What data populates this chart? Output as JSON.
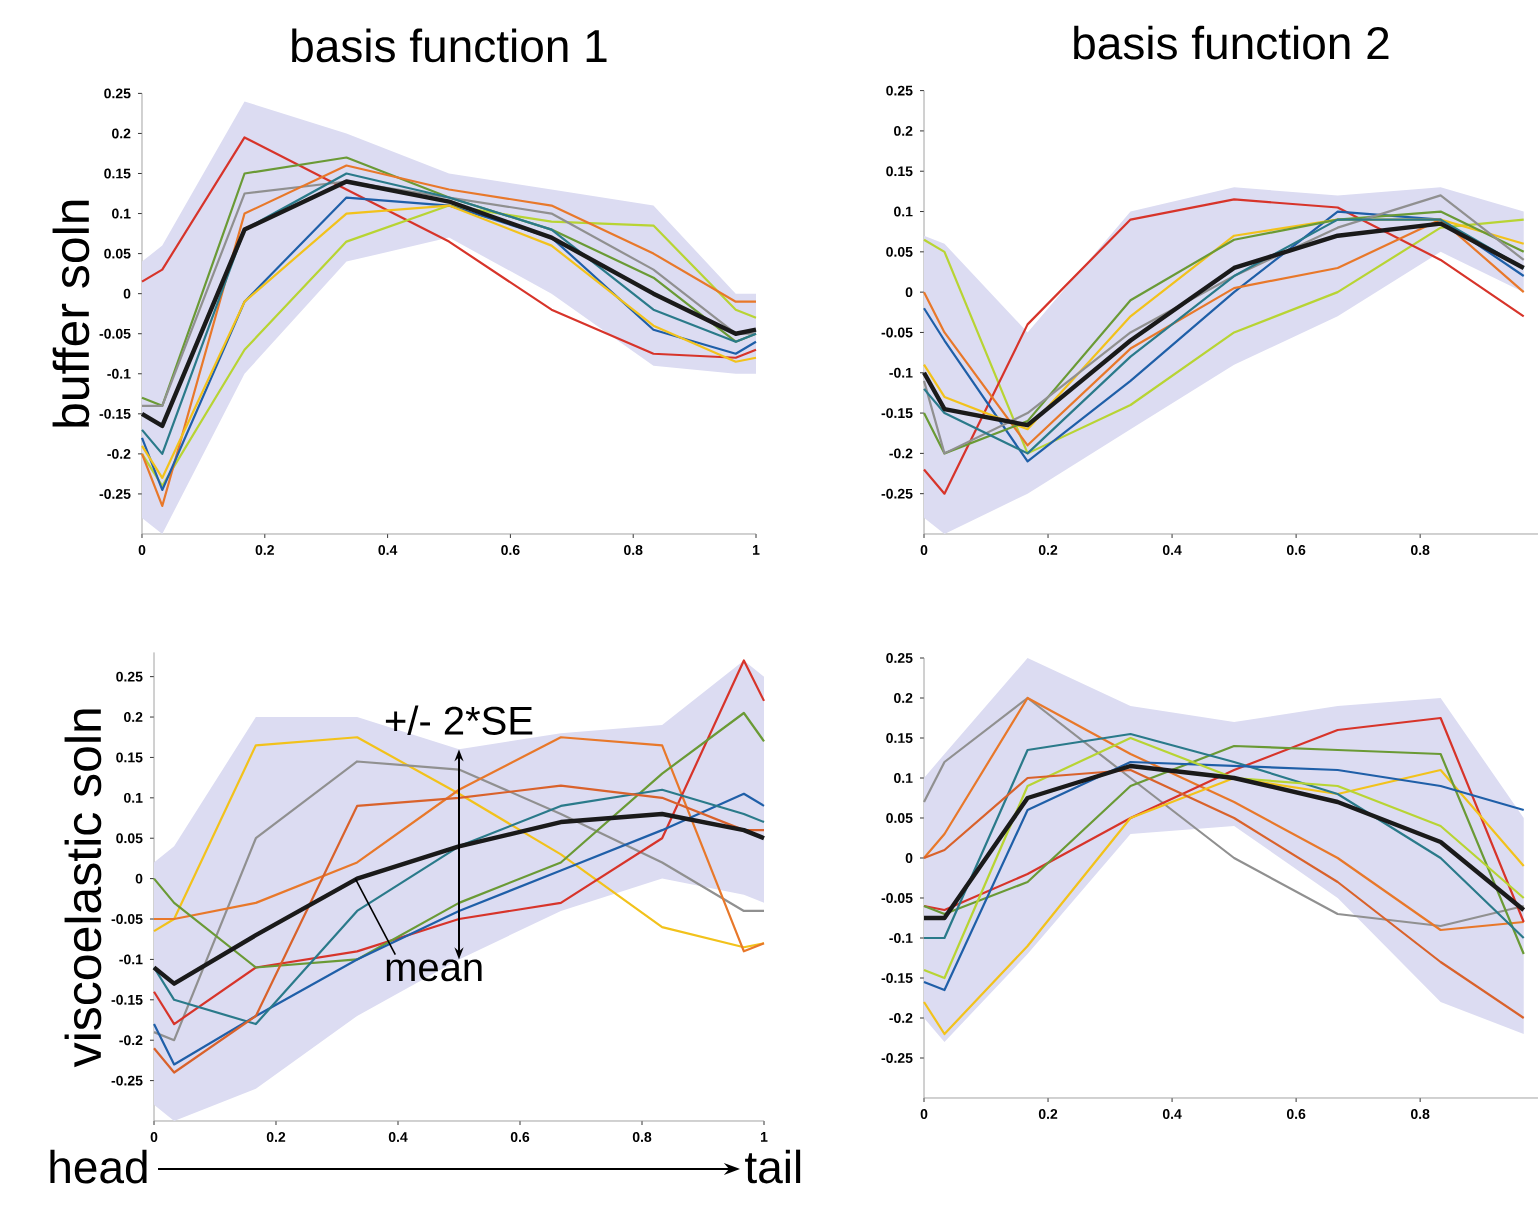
{
  "chart_data": [
    {
      "type": "line",
      "title": "basis function 1",
      "ylabel": "buffer soln",
      "x": [
        0,
        0.033,
        0.167,
        0.333,
        0.5,
        0.667,
        0.833,
        0.967,
        1
      ],
      "xlim": [
        0,
        1
      ],
      "ylim": [
        -0.3,
        0.25
      ],
      "xticks": [
        0,
        0.2,
        0.4,
        0.6,
        0.8,
        1
      ],
      "yticks": [
        -0.25,
        -0.2,
        -0.15,
        -0.1,
        -0.05,
        0,
        0.05,
        0.1,
        0.15,
        0.2,
        0.25
      ],
      "series": [
        {
          "color": "#d7342a",
          "values": [
            0.015,
            0.03,
            0.195,
            0.13,
            0.065,
            -0.02,
            -0.075,
            -0.08,
            -0.07
          ]
        },
        {
          "color": "#b8d433",
          "values": [
            -0.2,
            -0.24,
            -0.07,
            0.065,
            0.11,
            0.09,
            0.085,
            -0.02,
            -0.03
          ]
        },
        {
          "color": "#6a9a35",
          "values": [
            -0.13,
            -0.14,
            0.15,
            0.17,
            0.12,
            0.08,
            0.02,
            -0.06,
            -0.05
          ]
        },
        {
          "color": "#909090",
          "values": [
            -0.14,
            -0.14,
            0.125,
            0.14,
            0.12,
            0.1,
            0.03,
            -0.05,
            -0.05
          ]
        },
        {
          "color": "#e8782a",
          "values": [
            -0.2,
            -0.265,
            0.1,
            0.16,
            0.13,
            0.11,
            0.05,
            -0.01,
            -0.01
          ]
        },
        {
          "color": "#1f5fa8",
          "values": [
            -0.18,
            -0.245,
            -0.01,
            0.12,
            0.11,
            0.07,
            -0.045,
            -0.075,
            -0.06
          ]
        },
        {
          "color": "#2a7a8a",
          "values": [
            -0.17,
            -0.2,
            0.08,
            0.15,
            0.12,
            0.08,
            -0.02,
            -0.06,
            -0.05
          ]
        },
        {
          "color": "#f2c21b",
          "values": [
            -0.19,
            -0.23,
            -0.01,
            0.1,
            0.11,
            0.06,
            -0.04,
            -0.085,
            -0.08
          ]
        },
        {
          "color": "#1a1a1a",
          "values": [
            -0.15,
            -0.165,
            0.08,
            0.14,
            0.115,
            0.07,
            0.0,
            -0.05,
            -0.045
          ],
          "lower": [
            -0.28,
            -0.3,
            -0.1,
            0.04,
            0.07,
            0.0,
            -0.09,
            -0.1,
            -0.1
          ],
          "upper": [
            0.04,
            0.06,
            0.24,
            0.2,
            0.15,
            0.13,
            0.11,
            0.0,
            0.0
          ]
        }
      ]
    },
    {
      "type": "line",
      "title": "basis function 2",
      "x": [
        0,
        0.033,
        0.167,
        0.333,
        0.5,
        0.667,
        0.833,
        0.967
      ],
      "xlim": [
        0,
        0.99
      ],
      "ylim": [
        -0.3,
        0.25
      ],
      "xticks": [
        0,
        0.2,
        0.4,
        0.6,
        0.8
      ],
      "yticks": [
        -0.25,
        -0.2,
        -0.15,
        -0.1,
        -0.05,
        0,
        0.05,
        0.1,
        0.15,
        0.2,
        0.25
      ],
      "series": [
        {
          "color": "#b8d433",
          "values": [
            0.065,
            0.05,
            -0.2,
            -0.14,
            -0.05,
            0.0,
            0.08,
            0.09
          ]
        },
        {
          "color": "#d7342a",
          "values": [
            -0.22,
            -0.25,
            -0.04,
            0.09,
            0.115,
            0.105,
            0.04,
            -0.03
          ]
        },
        {
          "color": "#1f5fa8",
          "values": [
            -0.02,
            -0.06,
            -0.21,
            -0.11,
            0.0,
            0.1,
            0.09,
            0.02
          ]
        },
        {
          "color": "#e8782a",
          "values": [
            0.0,
            -0.05,
            -0.19,
            -0.07,
            0.005,
            0.03,
            0.09,
            0.0
          ]
        },
        {
          "color": "#f2c21b",
          "values": [
            -0.09,
            -0.13,
            -0.17,
            -0.03,
            0.07,
            0.09,
            0.09,
            0.06
          ]
        },
        {
          "color": "#6a9a35",
          "values": [
            -0.15,
            -0.2,
            -0.16,
            -0.01,
            0.065,
            0.09,
            0.1,
            0.05
          ]
        },
        {
          "color": "#909090",
          "values": [
            -0.11,
            -0.2,
            -0.15,
            -0.05,
            0.02,
            0.08,
            0.12,
            0.04
          ]
        },
        {
          "color": "#2a7a8a",
          "values": [
            -0.12,
            -0.15,
            -0.2,
            -0.08,
            0.02,
            0.09,
            0.09,
            0.03
          ]
        },
        {
          "color": "#1a1a1a",
          "values": [
            -0.1,
            -0.145,
            -0.165,
            -0.06,
            0.03,
            0.07,
            0.085,
            0.03
          ],
          "lower": [
            -0.28,
            -0.3,
            -0.25,
            -0.17,
            -0.09,
            -0.03,
            0.05,
            0.0
          ],
          "upper": [
            0.07,
            0.06,
            -0.05,
            0.1,
            0.13,
            0.12,
            0.13,
            0.1
          ]
        }
      ]
    },
    {
      "type": "line",
      "ylabel": "viscoelastic soln",
      "x": [
        0,
        0.033,
        0.167,
        0.333,
        0.5,
        0.667,
        0.833,
        0.967,
        1
      ],
      "xlim": [
        0,
        1
      ],
      "ylim": [
        -0.3,
        0.28
      ],
      "xticks": [
        0,
        0.2,
        0.4,
        0.6,
        0.8,
        1
      ],
      "yticks": [
        -0.25,
        -0.2,
        -0.15,
        -0.1,
        -0.05,
        0,
        0.05,
        0.1,
        0.15,
        0.2,
        0.25
      ],
      "annotations": [
        {
          "text": "+/- 2*SE",
          "x": 0.5,
          "y": 0.16
        },
        {
          "text": "mean",
          "x": 0.33,
          "y": 0.0
        },
        "head",
        "tail"
      ],
      "series": [
        {
          "color": "#f2c21b",
          "values": [
            -0.065,
            -0.05,
            0.165,
            0.175,
            0.105,
            0.03,
            -0.06,
            -0.085,
            -0.08
          ]
        },
        {
          "color": "#909090",
          "values": [
            -0.19,
            -0.2,
            0.05,
            0.145,
            0.135,
            0.08,
            0.02,
            -0.04,
            -0.04
          ]
        },
        {
          "color": "#e8782a",
          "values": [
            -0.05,
            -0.05,
            -0.03,
            0.02,
            0.11,
            0.175,
            0.165,
            -0.09,
            -0.08
          ]
        },
        {
          "color": "#d7342a",
          "values": [
            -0.14,
            -0.18,
            -0.11,
            -0.09,
            -0.05,
            -0.03,
            0.05,
            0.27,
            0.22
          ]
        },
        {
          "color": "#6a9a35",
          "values": [
            0.0,
            -0.03,
            -0.11,
            -0.1,
            -0.03,
            0.02,
            0.13,
            0.205,
            0.17
          ]
        },
        {
          "color": "#1f5fa8",
          "values": [
            -0.18,
            -0.23,
            -0.17,
            -0.1,
            -0.04,
            0.01,
            0.06,
            0.105,
            0.09
          ]
        },
        {
          "color": "#2a7a8a",
          "values": [
            -0.11,
            -0.15,
            -0.18,
            -0.04,
            0.04,
            0.09,
            0.11,
            0.08,
            0.07
          ]
        },
        {
          "color": "#d9622b",
          "values": [
            -0.21,
            -0.24,
            -0.17,
            0.09,
            0.1,
            0.115,
            0.1,
            0.06,
            0.06
          ]
        },
        {
          "color": "#1a1a1a",
          "values": [
            -0.11,
            -0.13,
            -0.07,
            0.0,
            0.04,
            0.07,
            0.08,
            0.06,
            0.05
          ],
          "lower": [
            -0.28,
            -0.3,
            -0.26,
            -0.17,
            -0.1,
            -0.04,
            0.0,
            -0.02,
            -0.03
          ],
          "upper": [
            0.02,
            0.04,
            0.2,
            0.2,
            0.16,
            0.18,
            0.19,
            0.27,
            0.25
          ]
        }
      ]
    },
    {
      "type": "line",
      "x": [
        0,
        0.033,
        0.167,
        0.333,
        0.5,
        0.667,
        0.833,
        0.967
      ],
      "xlim": [
        0,
        0.99
      ],
      "ylim": [
        -0.3,
        0.25
      ],
      "xticks": [
        0,
        0.2,
        0.4,
        0.6,
        0.8
      ],
      "yticks": [
        -0.25,
        -0.2,
        -0.15,
        -0.1,
        -0.05,
        0,
        0.05,
        0.1,
        0.15,
        0.2,
        0.25
      ],
      "series": [
        {
          "color": "#909090",
          "values": [
            0.07,
            0.12,
            0.2,
            0.1,
            0.0,
            -0.07,
            -0.085,
            -0.06
          ]
        },
        {
          "color": "#e8782a",
          "values": [
            0.0,
            0.03,
            0.2,
            0.13,
            0.07,
            0.0,
            -0.09,
            -0.08
          ]
        },
        {
          "color": "#d7342a",
          "values": [
            -0.06,
            -0.065,
            -0.02,
            0.05,
            0.11,
            0.16,
            0.175,
            -0.08
          ]
        },
        {
          "color": "#f2c21b",
          "values": [
            -0.18,
            -0.22,
            -0.11,
            0.05,
            0.1,
            0.08,
            0.11,
            -0.01
          ]
        },
        {
          "color": "#6a9a35",
          "values": [
            -0.06,
            -0.07,
            -0.03,
            0.09,
            0.14,
            0.135,
            0.13,
            -0.12
          ]
        },
        {
          "color": "#2a7a8a",
          "values": [
            -0.1,
            -0.1,
            0.135,
            0.155,
            0.12,
            0.08,
            0.0,
            -0.1
          ]
        },
        {
          "color": "#1f5fa8",
          "values": [
            -0.155,
            -0.165,
            0.06,
            0.12,
            0.115,
            0.11,
            0.09,
            0.06
          ]
        },
        {
          "color": "#b8d433",
          "values": [
            -0.14,
            -0.15,
            0.09,
            0.15,
            0.1,
            0.09,
            0.04,
            -0.05
          ]
        },
        {
          "color": "#d9622b",
          "values": [
            0.0,
            0.01,
            0.1,
            0.11,
            0.05,
            -0.03,
            -0.13,
            -0.2
          ]
        },
        {
          "color": "#1a1a1a",
          "values": [
            -0.075,
            -0.075,
            0.075,
            0.115,
            0.1,
            0.07,
            0.02,
            -0.065
          ],
          "lower": [
            -0.2,
            -0.23,
            -0.12,
            0.03,
            0.04,
            -0.05,
            -0.18,
            -0.22
          ],
          "upper": [
            0.1,
            0.13,
            0.25,
            0.19,
            0.17,
            0.19,
            0.2,
            0.05
          ]
        }
      ]
    }
  ]
}
